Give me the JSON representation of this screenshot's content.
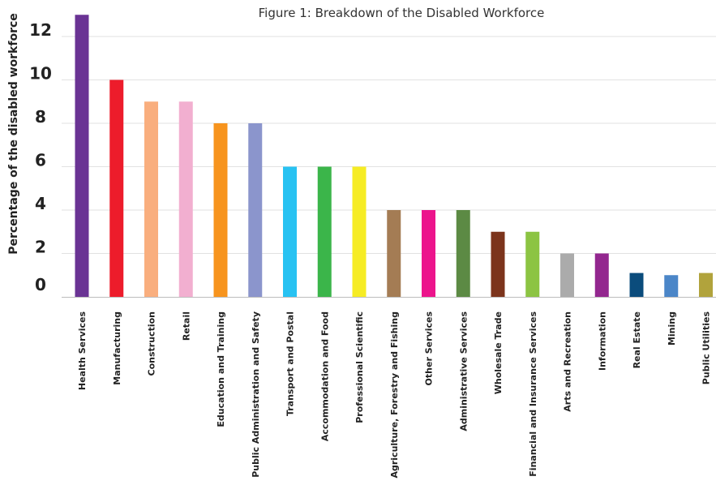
{
  "chart_data": {
    "type": "bar",
    "title": "Figure 1: Breakdown of the Disabled Workforce",
    "xlabel": "",
    "ylabel": "Percentage of the disabled workforce",
    "ylim": [
      0,
      13
    ],
    "yticks": [
      0,
      2,
      4,
      6,
      8,
      10,
      12
    ],
    "grid": true,
    "legend": "none",
    "categories": [
      "Health Services",
      "Manufacturing",
      "Construction",
      "Retail",
      "Education and Training",
      "Public Administration and Safety",
      "Transport and Postal",
      "Accommodation and Food",
      "Professional Scientific",
      "Agriculture, Forestry and Fishing",
      "Other Services",
      "Administrative Services",
      "Wholesale Trade",
      "Financial and Insurance Services",
      "Arts and Recreation",
      "Information",
      "Real Estate",
      "Mining",
      "Public Utilities"
    ],
    "values": [
      13,
      10,
      9,
      9,
      8,
      8,
      6,
      6,
      6,
      4,
      4,
      4,
      3,
      3,
      2,
      2,
      1.1,
      1,
      1.1
    ],
    "colors": [
      "#6a3394",
      "#ed1c2b",
      "#f9ae7e",
      "#f2afd0",
      "#f7941e",
      "#8b95cc",
      "#28c2f2",
      "#3bb54a",
      "#f6ec24",
      "#a47c54",
      "#ec148c",
      "#5c8a44",
      "#7c341c",
      "#8cc443",
      "#ababab",
      "#93278f",
      "#0b4c7c",
      "#4b86c8",
      "#b1a33c"
    ]
  }
}
